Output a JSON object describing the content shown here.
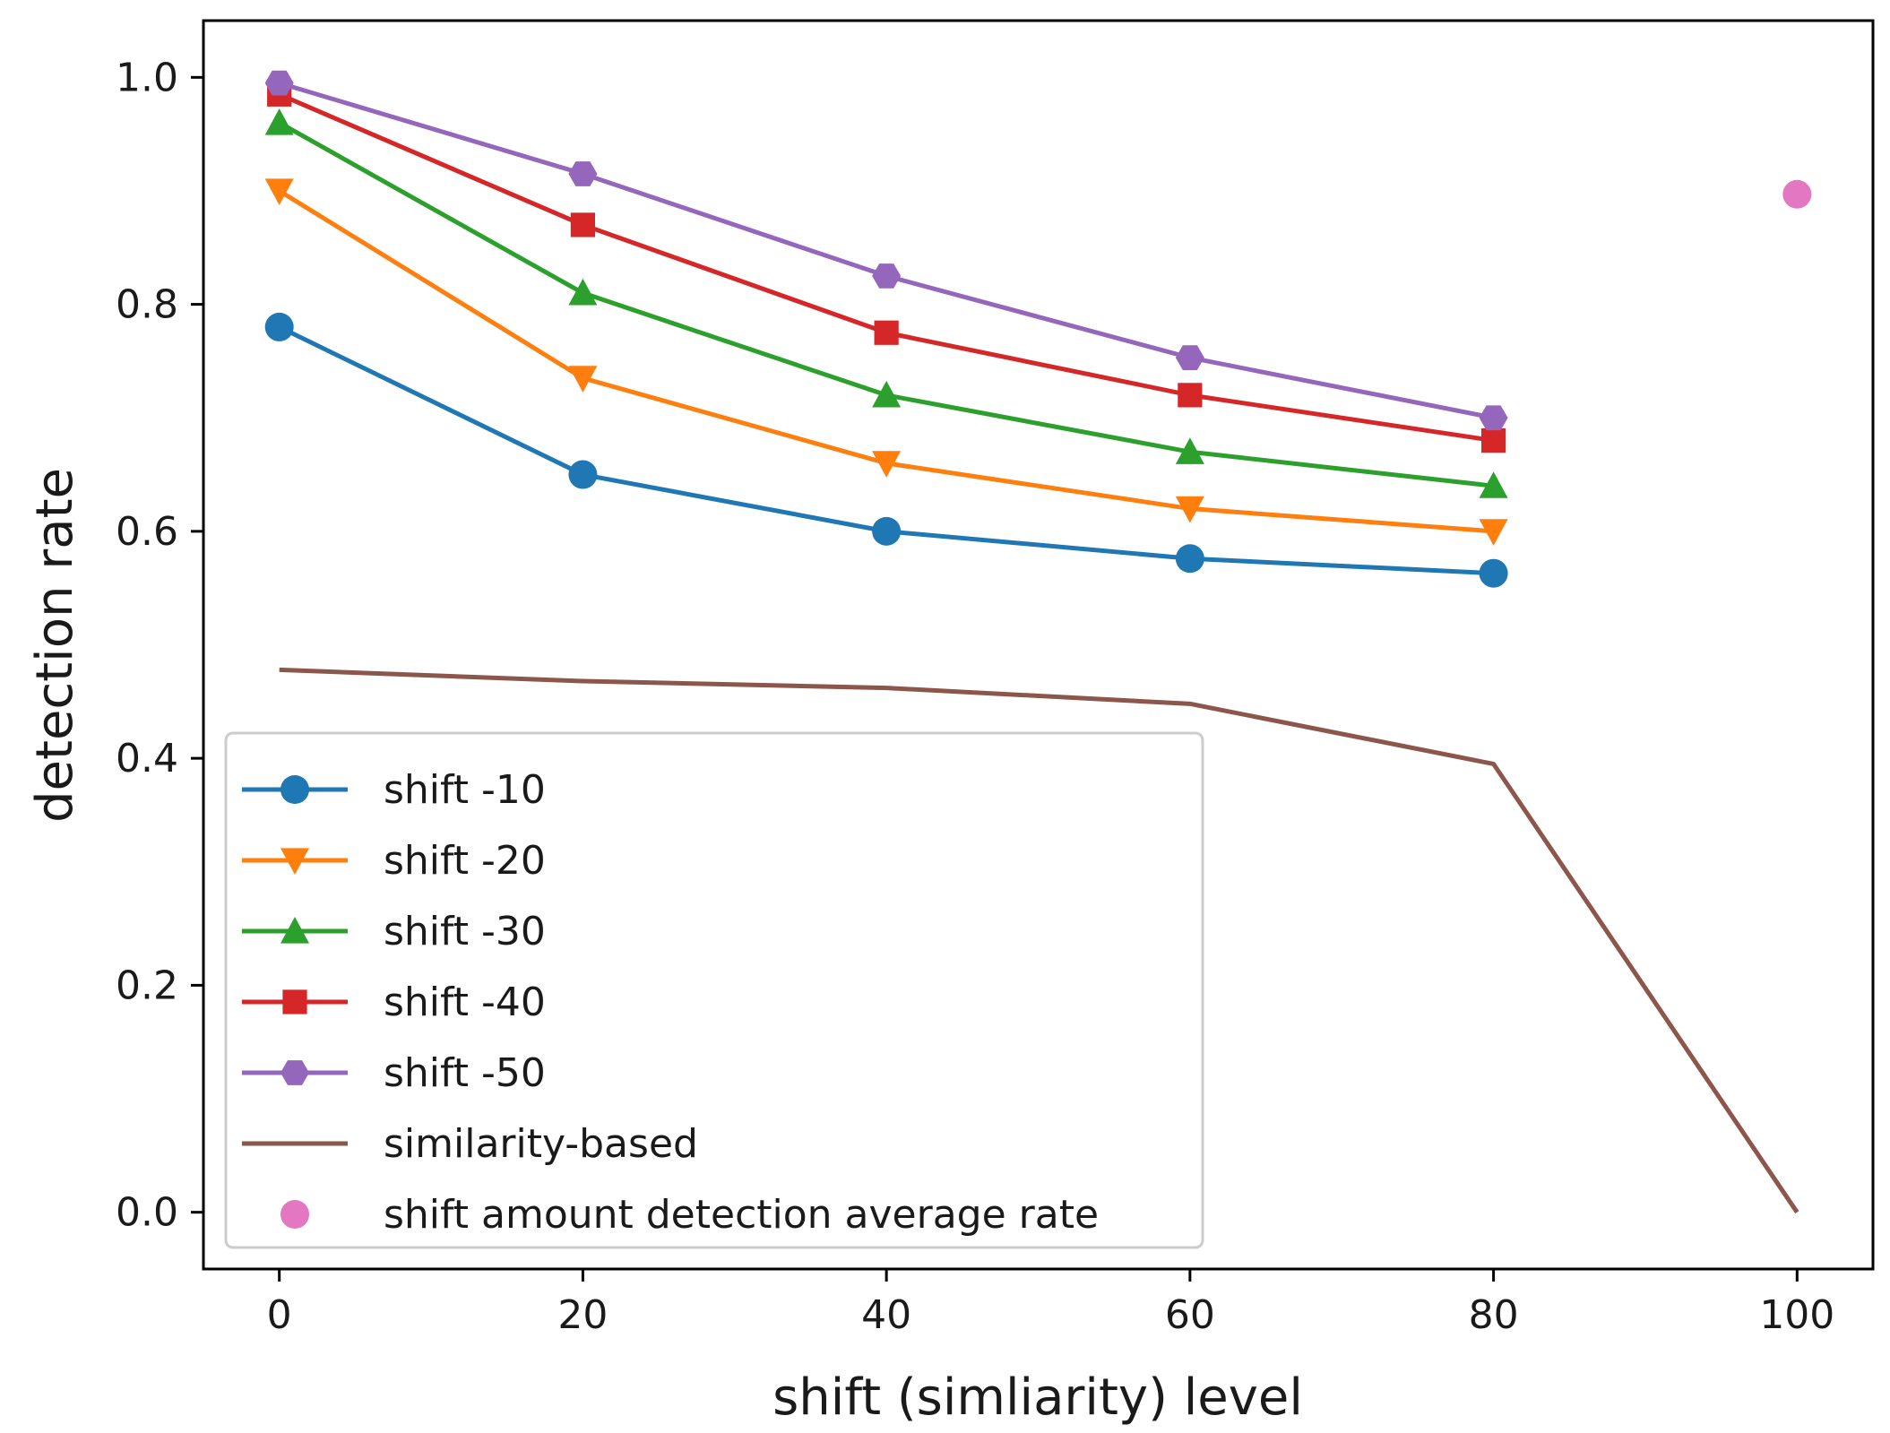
{
  "chart_data": {
    "type": "line",
    "title": "",
    "xlabel": "shift (simliarity) level",
    "ylabel": "detection rate",
    "xlim": [
      -5,
      105
    ],
    "ylim": [
      -0.05,
      1.05
    ],
    "xticks": [
      0,
      20,
      40,
      60,
      80,
      100
    ],
    "yticks": [
      0.0,
      0.2,
      0.4,
      0.6,
      0.8,
      1.0
    ],
    "xtick_labels": [
      "0",
      "20",
      "40",
      "60",
      "80",
      "100"
    ],
    "ytick_labels": [
      "0.0",
      "0.2",
      "0.4",
      "0.6",
      "0.8",
      "1.0"
    ],
    "grid": false,
    "legend_position": "lower-left",
    "series": [
      {
        "name": "shift -10",
        "color": "#1f77b4",
        "marker": "circle",
        "x": [
          0,
          20,
          40,
          60,
          80
        ],
        "values": [
          0.78,
          0.65,
          0.6,
          0.576,
          0.563
        ]
      },
      {
        "name": "shift -20",
        "color": "#ff7f0e",
        "marker": "triangle-down",
        "x": [
          0,
          20,
          40,
          60,
          80
        ],
        "values": [
          0.9,
          0.735,
          0.66,
          0.62,
          0.6
        ]
      },
      {
        "name": "shift -30",
        "color": "#2ca02c",
        "marker": "triangle-up",
        "x": [
          0,
          20,
          40,
          60,
          80
        ],
        "values": [
          0.96,
          0.81,
          0.72,
          0.67,
          0.64
        ]
      },
      {
        "name": "shift -40",
        "color": "#d62728",
        "marker": "square",
        "x": [
          0,
          20,
          40,
          60,
          80
        ],
        "values": [
          0.985,
          0.87,
          0.775,
          0.72,
          0.68
        ]
      },
      {
        "name": "shift -50",
        "color": "#9467bd",
        "marker": "hexagon",
        "x": [
          0,
          20,
          40,
          60,
          80
        ],
        "values": [
          0.995,
          0.915,
          0.825,
          0.753,
          0.7
        ]
      },
      {
        "name": "similarity-based",
        "color": "#8c564b",
        "marker": "none",
        "x": [
          0,
          20,
          40,
          60,
          80,
          100
        ],
        "values": [
          0.478,
          0.468,
          0.462,
          0.448,
          0.395,
          0.0
        ]
      },
      {
        "name": "shift amount detection average rate",
        "color": "#e377c2",
        "marker": "circle",
        "line": false,
        "x": [
          100
        ],
        "values": [
          0.897
        ]
      }
    ]
  }
}
